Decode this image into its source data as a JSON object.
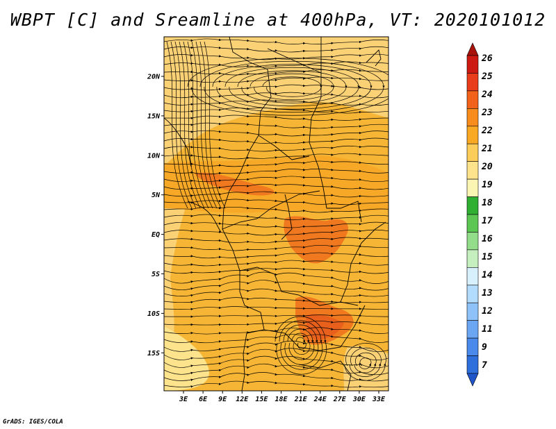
{
  "title": "WBPT [C] and Sreamline at 400hPa, VT: 2020101012",
  "credit": "GrADS: IGES/COLA",
  "map": {
    "lat_labels": [
      "20N",
      "15N",
      "10N",
      "5N",
      "EQ",
      "5S",
      "10S",
      "15S"
    ],
    "lon_labels": [
      "3E",
      "6E",
      "9E",
      "12E",
      "15E",
      "18E",
      "21E",
      "24E",
      "27E",
      "30E",
      "33E"
    ]
  },
  "colorbar": {
    "labels": [
      "7",
      "9",
      "11",
      "12",
      "13",
      "14",
      "15",
      "16",
      "17",
      "18",
      "19",
      "20",
      "21",
      "22",
      "23",
      "24",
      "25",
      "26"
    ],
    "colors": [
      "#1f55c8",
      "#2f6fdc",
      "#4a8aea",
      "#6aa6f2",
      "#8fc2f8",
      "#b3dbfb",
      "#d8f0fc",
      "#c6efc0",
      "#93dc8a",
      "#5cc653",
      "#2fb033",
      "#fbf5b4",
      "#fde38c",
      "#fccc5a",
      "#f9a824",
      "#f78c1c",
      "#f2621a",
      "#e83c1a",
      "#cc1a12",
      "#a8120c"
    ]
  },
  "field_colors": {
    "base": "#f6b535",
    "band_light": "#fbd176",
    "band_mid": "#f7a826",
    "hot": "#f0781e",
    "hotter": "#e8601c",
    "pale": "#fde38c"
  }
}
